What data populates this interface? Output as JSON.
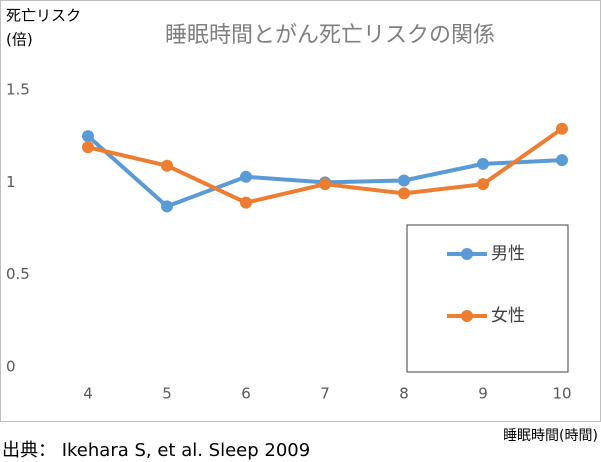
{
  "chart_data": {
    "type": "line",
    "title": "睡眠時間とがん死亡リスクの関係",
    "ylabel": [
      "死亡リスク",
      "(倍)"
    ],
    "xlabel": "睡眠時間(時間)",
    "source": "出典： Ikehara S, et al.   Sleep 2009",
    "categories": [
      "4",
      "5",
      "6",
      "7",
      "8",
      "9",
      "10"
    ],
    "series": [
      {
        "name": "男性",
        "color": "#5b9bd5",
        "values": [
          1.25,
          0.87,
          1.03,
          1.0,
          1.01,
          1.1,
          1.12
        ]
      },
      {
        "name": "女性",
        "color": "#ed7d31",
        "values": [
          1.19,
          1.09,
          0.89,
          0.99,
          0.94,
          0.99,
          1.29
        ]
      }
    ],
    "ylim": [
      0,
      1.5
    ],
    "yticks": [
      0,
      0.5,
      1,
      1.5
    ],
    "legend": "lower right",
    "grid": false
  }
}
